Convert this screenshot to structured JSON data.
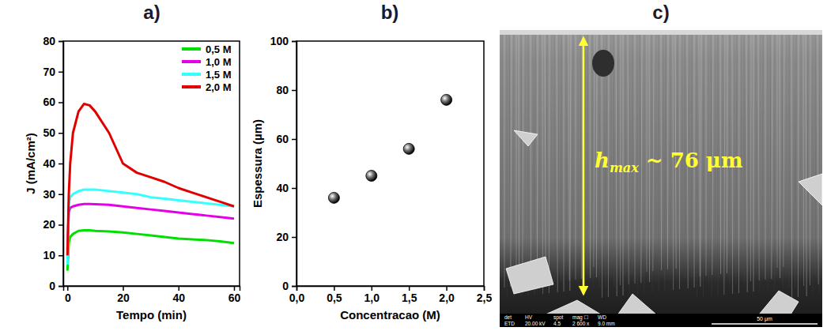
{
  "chart_data": [
    {
      "type": "line",
      "title": "a)",
      "x_label": "Tempo (min)",
      "y_label": "J (mA/cm²)",
      "x": [
        0,
        0.5,
        1,
        2,
        4,
        6,
        8,
        10,
        15,
        20,
        25,
        30,
        35,
        40,
        45,
        50,
        55,
        60
      ],
      "series": [
        {
          "name": "0,5 M",
          "color": "#00e000",
          "values": [
            5,
            14,
            16,
            17,
            18,
            18.2,
            18.2,
            18,
            17.8,
            17.5,
            17,
            16.5,
            16,
            15.5,
            15.2,
            15,
            14.6,
            14
          ]
        },
        {
          "name": "1,0 M",
          "color": "#e600e6",
          "values": [
            12,
            24,
            25.5,
            26,
            26.5,
            26.8,
            26.8,
            26.7,
            26.5,
            26,
            25.5,
            25,
            24.5,
            24,
            23.5,
            23,
            22.5,
            22
          ]
        },
        {
          "name": "1,5 M",
          "color": "#33ffff",
          "values": [
            7,
            27,
            29,
            30,
            31,
            31.5,
            31.5,
            31.5,
            31,
            30.5,
            30,
            29,
            28.5,
            28,
            27.5,
            27,
            26.5,
            26
          ]
        },
        {
          "name": "2,0 M",
          "color": "#e00000",
          "values": [
            10,
            30,
            40,
            50,
            57,
            59.5,
            59,
            57,
            50,
            40,
            37,
            35.5,
            34,
            32,
            30.5,
            29,
            27.5,
            26
          ]
        }
      ],
      "xlim": [
        -1.5,
        62
      ],
      "xticks": [
        0,
        20,
        40,
        60
      ],
      "ylim": [
        0,
        80
      ],
      "yticks": [
        0,
        10,
        20,
        30,
        40,
        50,
        60,
        70,
        80
      ],
      "legend": "upper right"
    },
    {
      "type": "scatter",
      "title": "b)",
      "x_label": "Concentracao (M)",
      "y_label": "Espessura (µm)",
      "x": [
        0.5,
        1.0,
        1.5,
        2.0
      ],
      "values": [
        36,
        45,
        56,
        76
      ],
      "color": "#000000",
      "marker": "circle",
      "xlim": [
        0,
        2.5
      ],
      "xticks": [
        {
          "value": 0,
          "label": "0,0"
        },
        {
          "value": 0.5,
          "label": "0,5"
        },
        {
          "value": 1,
          "label": "1,0"
        },
        {
          "value": 1.5,
          "label": "1,5"
        },
        {
          "value": 2,
          "label": "2,0"
        },
        {
          "value": 2.5,
          "label": "2,5"
        }
      ],
      "ylim": [
        0,
        100
      ],
      "yticks": [
        0,
        20,
        40,
        60,
        80,
        100
      ]
    }
  ],
  "image": {
    "title": "c)",
    "annotation": {
      "symbol": "h",
      "subscript": "max",
      "rest": " ~ 76 μm"
    },
    "info_bar": {
      "headers": [
        "det",
        "HV",
        "spot",
        "mag ☐",
        "WD"
      ],
      "values": [
        "ETD",
        "20.00 kV",
        "4.5",
        "2 600 x",
        "9.0 mm"
      ],
      "scale_bar": "50 μm"
    }
  }
}
